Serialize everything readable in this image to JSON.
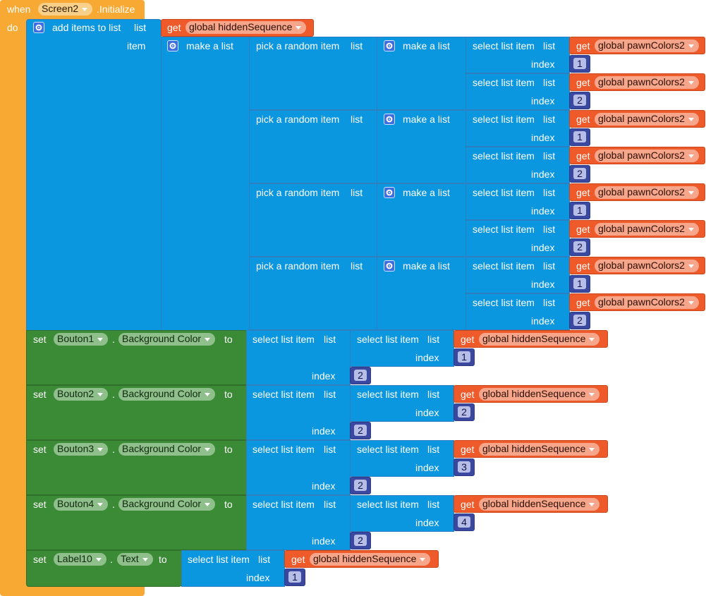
{
  "event": {
    "when_label": "when",
    "component": "Screen2",
    "event_name": ".Initialize",
    "do_label": "do"
  },
  "add_items": {
    "label": "add items to list",
    "list_label": "list",
    "item_label": "item",
    "get_label": "get",
    "hidden_var": "global hiddenSequence",
    "make_list_label": "make a list",
    "pick_label": "pick a random item",
    "pick_list_label": "list",
    "inner_make_list_label": "make a list",
    "select_label": "select list item",
    "select_list_label": "list",
    "index_label": "index",
    "pawn_var": "global pawnColors2",
    "rows": [
      {
        "i1": "1",
        "i2": "2"
      },
      {
        "i1": "1",
        "i2": "2"
      },
      {
        "i1": "1",
        "i2": "2"
      },
      {
        "i1": "1",
        "i2": "2"
      }
    ]
  },
  "set_blocks": {
    "set_label": "set",
    "dot": ".",
    "to_label": "to",
    "select_label": "select list item",
    "list_label": "list",
    "index_label": "index",
    "get_label": "get",
    "hidden_var": "global hiddenSequence",
    "rows": [
      {
        "component": "Bouton1",
        "property": "Background Color",
        "inner_index": "1",
        "outer_index": "2"
      },
      {
        "component": "Bouton2",
        "property": "Background Color",
        "inner_index": "2",
        "outer_index": "2"
      },
      {
        "component": "Bouton3",
        "property": "Background Color",
        "inner_index": "3",
        "outer_index": "2"
      },
      {
        "component": "Bouton4",
        "property": "Background Color",
        "inner_index": "4",
        "outer_index": "2"
      }
    ],
    "label_row": {
      "component": "Label10",
      "property": "Text",
      "index": "1"
    }
  },
  "colors": {
    "event_block": "#f8a933",
    "list_block": "#0b97e0",
    "setter_block": "#3b8a36",
    "getter_block": "#ef5a2a",
    "number_block": "#3a48a0"
  },
  "icons": [
    "mutator-gear-icon",
    "dropdown-arrow-icon"
  ]
}
